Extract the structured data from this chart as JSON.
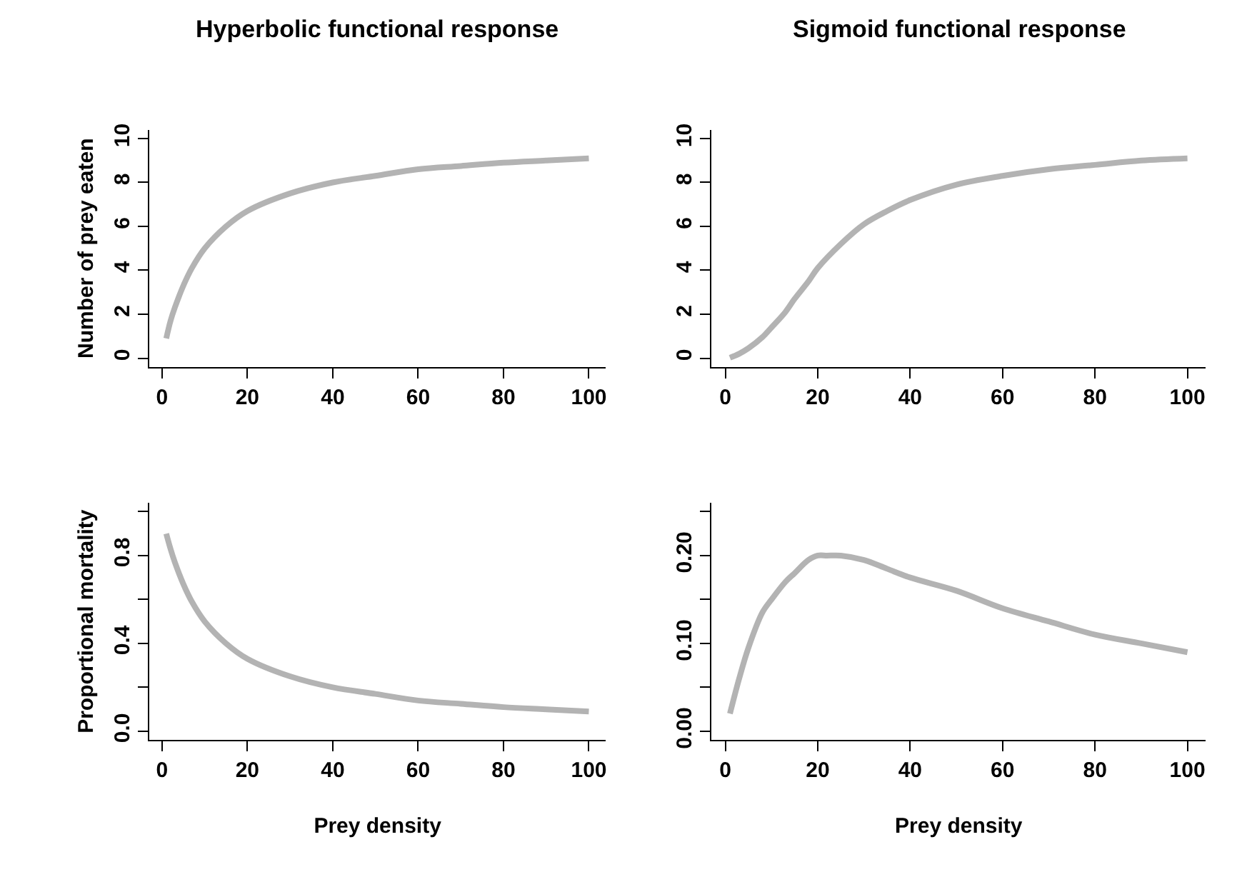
{
  "chart_data": [
    {
      "type": "line",
      "title": "Hyperbolic functional response",
      "ylabel": "Number of prey eaten",
      "x": [
        1,
        2,
        3,
        5,
        7,
        10,
        15,
        20,
        30,
        40,
        50,
        60,
        70,
        80,
        90,
        100
      ],
      "series": [
        {
          "color": "#b3b3b3",
          "values": [
            0.9,
            1.7,
            2.3,
            3.3,
            4.1,
            5.0,
            6.0,
            6.7,
            7.5,
            8.0,
            8.3,
            8.6,
            8.75,
            8.9,
            9.0,
            9.1
          ]
        }
      ],
      "xlim": [
        -2.96,
        103.96
      ],
      "xticks": [
        0,
        20,
        40,
        60,
        80,
        100
      ],
      "ylim": [
        -0.4,
        10.4
      ],
      "yticks": [
        0,
        2,
        4,
        6,
        8,
        10
      ],
      "marker": "none",
      "line_style": "solid"
    },
    {
      "type": "line",
      "title": "Sigmoid functional response",
      "x": [
        1,
        3,
        5,
        8,
        10,
        13,
        15,
        18,
        20,
        25,
        30,
        35,
        40,
        50,
        60,
        70,
        80,
        90,
        100
      ],
      "series": [
        {
          "color": "#b3b3b3",
          "values": [
            0.02,
            0.2,
            0.45,
            0.95,
            1.4,
            2.1,
            2.7,
            3.5,
            4.1,
            5.2,
            6.1,
            6.7,
            7.2,
            7.9,
            8.3,
            8.6,
            8.8,
            9.0,
            9.1
          ]
        }
      ],
      "xlim": [
        -2.96,
        103.96
      ],
      "xticks": [
        0,
        20,
        40,
        60,
        80,
        100
      ],
      "ylim": [
        -0.4,
        10.4
      ],
      "yticks": [
        0,
        2,
        4,
        6,
        8,
        10
      ],
      "marker": "none",
      "line_style": "solid"
    },
    {
      "type": "line",
      "xlabel": "Prey density",
      "ylabel": "Proportional mortality",
      "x": [
        1,
        2,
        3,
        5,
        7,
        10,
        15,
        20,
        30,
        40,
        50,
        60,
        70,
        80,
        90,
        100
      ],
      "series": [
        {
          "color": "#b3b3b3",
          "values": [
            0.9,
            0.83,
            0.77,
            0.67,
            0.59,
            0.5,
            0.4,
            0.33,
            0.25,
            0.2,
            0.17,
            0.14,
            0.125,
            0.11,
            0.1,
            0.09
          ]
        }
      ],
      "xlim": [
        -2.96,
        103.96
      ],
      "xticks": [
        0,
        20,
        40,
        60,
        80,
        100
      ],
      "ylim": [
        -0.04,
        1.04
      ],
      "yticks": [
        {
          "value": 0,
          "label": "0.0"
        },
        {
          "value": 0.2,
          "label": null
        },
        {
          "value": 0.4,
          "label": "0.4"
        },
        {
          "value": 0.6,
          "label": null
        },
        {
          "value": 0.8,
          "label": "0.8"
        },
        {
          "value": 1.0,
          "label": null
        }
      ],
      "marker": "none",
      "line_style": "solid"
    },
    {
      "type": "line",
      "xlabel": "Prey density",
      "x": [
        1,
        3,
        5,
        8,
        10,
        13,
        15,
        18,
        20,
        22,
        25,
        30,
        35,
        40,
        50,
        60,
        70,
        80,
        90,
        100
      ],
      "series": [
        {
          "color": "#b3b3b3",
          "values": [
            0.02,
            0.06,
            0.095,
            0.135,
            0.15,
            0.17,
            0.18,
            0.195,
            0.2,
            0.2,
            0.2,
            0.195,
            0.185,
            0.175,
            0.16,
            0.14,
            0.125,
            0.11,
            0.1,
            0.09
          ]
        }
      ],
      "xlim": [
        -2.96,
        103.96
      ],
      "xticks": [
        0,
        20,
        40,
        60,
        80,
        100
      ],
      "ylim": [
        -0.01,
        0.26
      ],
      "yticks": [
        {
          "value": 0,
          "label": "0.00"
        },
        {
          "value": 0.05,
          "label": null
        },
        {
          "value": 0.1,
          "label": "0.10"
        },
        {
          "value": 0.15,
          "label": null
        },
        {
          "value": 0.2,
          "label": "0.20"
        },
        {
          "value": 0.25,
          "label": null
        }
      ],
      "marker": "none",
      "line_style": "solid"
    }
  ]
}
